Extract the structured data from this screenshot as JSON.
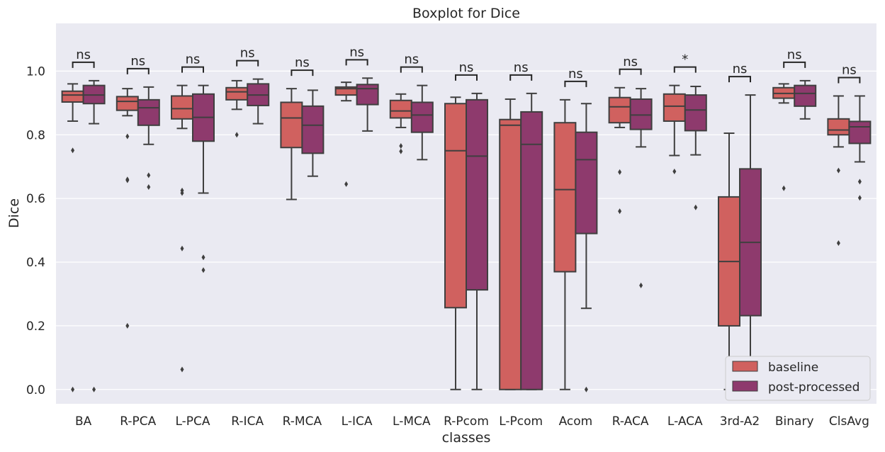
{
  "chart_data": {
    "type": "boxplot",
    "title": "Boxplot for Dice",
    "xlabel": "classes",
    "ylabel": "Dice",
    "ylim": [
      -0.045,
      1.15
    ],
    "yticks": [
      "0.0",
      "0.2",
      "0.4",
      "0.6",
      "0.8",
      "1.0"
    ],
    "grid": true,
    "legend_position": "bottom-right",
    "categories": [
      "BA",
      "R-PCA",
      "L-PCA",
      "R-ICA",
      "R-MCA",
      "L-ICA",
      "L-MCA",
      "R-Pcom",
      "L-Pcom",
      "Acom",
      "R-ACA",
      "L-ACA",
      "3rd-A2",
      "Binary",
      "ClsAvg"
    ],
    "significance": [
      "ns",
      "ns",
      "ns",
      "ns",
      "ns",
      "ns",
      "ns",
      "ns",
      "ns",
      "ns",
      "ns",
      "*",
      "ns",
      "ns",
      "ns"
    ],
    "series": [
      {
        "name": "baseline",
        "color": "#d0615f",
        "boxes": [
          {
            "q1": 0.903,
            "median": 0.925,
            "q3": 0.937,
            "whislo": 0.843,
            "whishi": 0.96,
            "fliers": [
              0.751,
              0.0
            ]
          },
          {
            "q1": 0.877,
            "median": 0.905,
            "q3": 0.92,
            "whislo": 0.86,
            "whishi": 0.945,
            "fliers": [
              0.795,
              0.66,
              0.657,
              0.2
            ]
          },
          {
            "q1": 0.85,
            "median": 0.882,
            "q3": 0.922,
            "whislo": 0.82,
            "whishi": 0.955,
            "fliers": [
              0.625,
              0.617,
              0.443,
              0.063
            ]
          },
          {
            "q1": 0.91,
            "median": 0.935,
            "q3": 0.948,
            "whislo": 0.88,
            "whishi": 0.97,
            "fliers": [
              0.8
            ]
          },
          {
            "q1": 0.76,
            "median": 0.853,
            "q3": 0.902,
            "whislo": 0.597,
            "whishi": 0.945,
            "fliers": []
          },
          {
            "q1": 0.925,
            "median": 0.945,
            "q3": 0.95,
            "whislo": 0.907,
            "whishi": 0.965,
            "fliers": [
              0.645
            ]
          },
          {
            "q1": 0.853,
            "median": 0.875,
            "q3": 0.908,
            "whislo": 0.823,
            "whishi": 0.928,
            "fliers": [
              0.765,
              0.748
            ]
          },
          {
            "q1": 0.257,
            "median": 0.75,
            "q3": 0.898,
            "whislo": 0.0,
            "whishi": 0.918,
            "fliers": []
          },
          {
            "q1": 0.0,
            "median": 0.83,
            "q3": 0.848,
            "whislo": 0.0,
            "whishi": 0.912,
            "fliers": []
          },
          {
            "q1": 0.37,
            "median": 0.628,
            "q3": 0.838,
            "whislo": 0.0,
            "whishi": 0.91,
            "fliers": []
          },
          {
            "q1": 0.838,
            "median": 0.888,
            "q3": 0.917,
            "whislo": 0.823,
            "whishi": 0.948,
            "fliers": [
              0.683,
              0.56
            ]
          },
          {
            "q1": 0.843,
            "median": 0.89,
            "q3": 0.928,
            "whislo": 0.735,
            "whishi": 0.955,
            "fliers": [
              0.685
            ]
          },
          {
            "q1": 0.2,
            "median": 0.402,
            "q3": 0.605,
            "whislo": 0.0,
            "whishi": 0.805,
            "fliers": []
          },
          {
            "q1": 0.915,
            "median": 0.93,
            "q3": 0.948,
            "whislo": 0.9,
            "whishi": 0.96,
            "fliers": [
              0.632
            ]
          },
          {
            "q1": 0.8,
            "median": 0.815,
            "q3": 0.85,
            "whislo": 0.762,
            "whishi": 0.922,
            "fliers": [
              0.688,
              0.46
            ]
          }
        ]
      },
      {
        "name": "post-processed",
        "color": "#8e3a6d",
        "boxes": [
          {
            "q1": 0.898,
            "median": 0.925,
            "q3": 0.955,
            "whislo": 0.835,
            "whishi": 0.97,
            "fliers": [
              0.0
            ]
          },
          {
            "q1": 0.83,
            "median": 0.885,
            "q3": 0.91,
            "whislo": 0.77,
            "whishi": 0.95,
            "fliers": [
              0.673,
              0.636
            ]
          },
          {
            "q1": 0.78,
            "median": 0.855,
            "q3": 0.928,
            "whislo": 0.617,
            "whishi": 0.955,
            "fliers": [
              0.415,
              0.375
            ]
          },
          {
            "q1": 0.892,
            "median": 0.925,
            "q3": 0.96,
            "whislo": 0.835,
            "whishi": 0.975,
            "fliers": []
          },
          {
            "q1": 0.742,
            "median": 0.83,
            "q3": 0.89,
            "whislo": 0.67,
            "whishi": 0.94,
            "fliers": []
          },
          {
            "q1": 0.895,
            "median": 0.945,
            "q3": 0.958,
            "whislo": 0.812,
            "whishi": 0.978,
            "fliers": []
          },
          {
            "q1": 0.808,
            "median": 0.862,
            "q3": 0.902,
            "whislo": 0.722,
            "whishi": 0.955,
            "fliers": []
          },
          {
            "q1": 0.313,
            "median": 0.733,
            "q3": 0.91,
            "whislo": 0.0,
            "whishi": 0.93,
            "fliers": []
          },
          {
            "q1": 0.0,
            "median": 0.77,
            "q3": 0.872,
            "whislo": 0.0,
            "whishi": 0.93,
            "fliers": []
          },
          {
            "q1": 0.49,
            "median": 0.722,
            "q3": 0.808,
            "whislo": 0.255,
            "whishi": 0.898,
            "fliers": [
              0.0
            ]
          },
          {
            "q1": 0.817,
            "median": 0.862,
            "q3": 0.912,
            "whislo": 0.762,
            "whishi": 0.945,
            "fliers": [
              0.327
            ]
          },
          {
            "q1": 0.813,
            "median": 0.878,
            "q3": 0.925,
            "whislo": 0.737,
            "whishi": 0.952,
            "fliers": [
              0.572
            ]
          },
          {
            "q1": 0.232,
            "median": 0.462,
            "q3": 0.693,
            "whislo": 0.0,
            "whishi": 0.925,
            "fliers": []
          },
          {
            "q1": 0.89,
            "median": 0.93,
            "q3": 0.955,
            "whislo": 0.85,
            "whishi": 0.97,
            "fliers": []
          },
          {
            "q1": 0.773,
            "median": 0.825,
            "q3": 0.842,
            "whislo": 0.715,
            "whishi": 0.922,
            "fliers": [
              0.653,
              0.602
            ]
          }
        ]
      }
    ]
  }
}
